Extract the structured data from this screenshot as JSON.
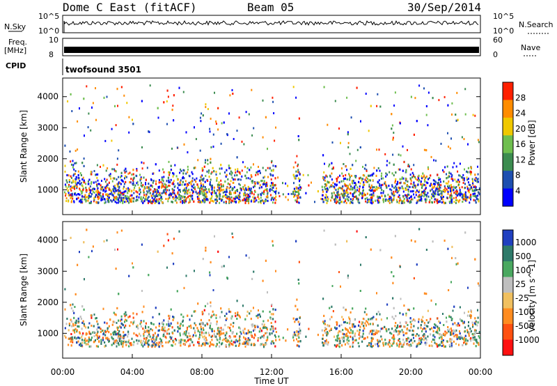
{
  "header": {
    "station": "Dome C East (fitACF)",
    "beam": "Beam 05",
    "date": "30/Sep/2014"
  },
  "strip": {
    "nsky_label": "N.Sky",
    "nsky_top": "10^5",
    "nsky_bot": "10^0",
    "nsearch_label": "N.Search",
    "nsearch_top": "10^5",
    "nsearch_bot": "10^0",
    "freq_label": "Freq.",
    "freq_unit": "[MHz]",
    "freq_top": "10",
    "freq_bot": "8",
    "nave_label": "Nave",
    "nave_top": "60",
    "nave_bot": "0",
    "cpid_label": "CPID",
    "cpid_value": "twofsound 3501"
  },
  "chart_data": [
    {
      "type": "heatmap",
      "name": "power",
      "ylabel": "Slant Range [km]",
      "yticks": [
        "1000",
        "2000",
        "3000",
        "4000"
      ],
      "ylim": [
        200,
        4600
      ],
      "colorbar_label": "Power [dB]",
      "colorbar_ticks": [
        "4",
        "8",
        "12",
        "16",
        "20",
        "24",
        "28"
      ],
      "colors": [
        "#0000ff",
        "#1e4fb0",
        "#3c8c50",
        "#6fbf4f",
        "#f0c800",
        "#ff8c00",
        "#ff2000"
      ]
    },
    {
      "type": "heatmap",
      "name": "velocity",
      "ylabel": "Slant Range [km]",
      "yticks": [
        "1000",
        "2000",
        "3000",
        "4000"
      ],
      "ylim": [
        200,
        4600
      ],
      "colorbar_label": "Velocity [m s^-1]",
      "colorbar_ticks": [
        "1000",
        "500",
        "100",
        "25",
        "-25",
        "-100",
        "-500",
        "-1000"
      ],
      "colors": [
        "#2040c0",
        "#2f7a6a",
        "#4aa860",
        "#bfbfbf",
        "#f0c060",
        "#ff8c20",
        "#ff5010",
        "#ff1010"
      ]
    }
  ],
  "xaxis": {
    "label": "Time UT",
    "ticks": [
      "00:00",
      "04:00",
      "08:00",
      "12:00",
      "16:00",
      "20:00",
      "00:00"
    ]
  }
}
